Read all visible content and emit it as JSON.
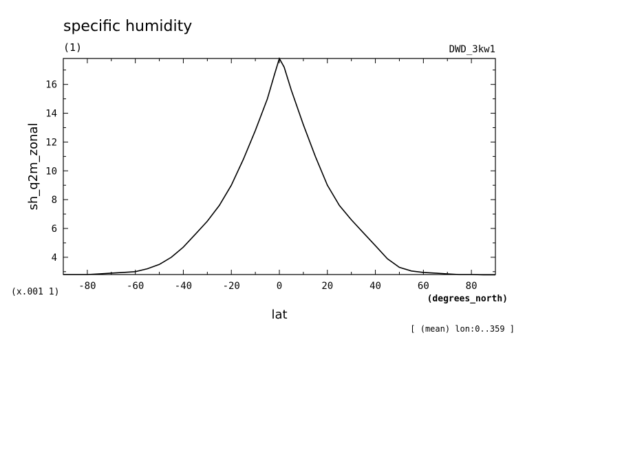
{
  "chart_data": {
    "type": "line",
    "title": "specific humidity",
    "units_label": "(1)",
    "dataset_label": "DWD_3kw1",
    "xlabel": "lat",
    "xunits": "(degrees_north)",
    "ylabel": "sh_q2m_zonal",
    "yscale_label": "(x.001 1)",
    "footnote": "[ (mean) lon:0..359 ]",
    "xlim": [
      -90,
      90
    ],
    "ylim": [
      2.8,
      17.8
    ],
    "xticks": [
      -80,
      -60,
      -40,
      -20,
      0,
      20,
      40,
      60,
      80
    ],
    "yticks": [
      4,
      6,
      8,
      10,
      12,
      14,
      16
    ],
    "grid": false,
    "line_color": "#000000",
    "series": [
      {
        "x": [
          -90,
          -85,
          -80,
          -75,
          -70,
          -65,
          -60,
          -55,
          -50,
          -45,
          -40,
          -35,
          -30,
          -25,
          -20,
          -15,
          -10,
          -5,
          -2,
          0,
          2,
          5,
          10,
          15,
          20,
          25,
          30,
          35,
          40,
          45,
          50,
          55,
          60,
          65,
          70,
          75,
          80,
          85,
          90
        ],
        "y": [
          2.8,
          2.8,
          2.8,
          2.85,
          2.9,
          2.95,
          3.0,
          3.2,
          3.5,
          4.0,
          4.7,
          5.6,
          6.5,
          7.6,
          9.0,
          10.8,
          12.8,
          15.0,
          16.7,
          17.8,
          17.2,
          15.6,
          13.2,
          11.0,
          9.0,
          7.6,
          6.6,
          5.7,
          4.8,
          3.9,
          3.3,
          3.05,
          2.95,
          2.9,
          2.85,
          2.8,
          2.8,
          2.78,
          2.78
        ]
      }
    ]
  }
}
